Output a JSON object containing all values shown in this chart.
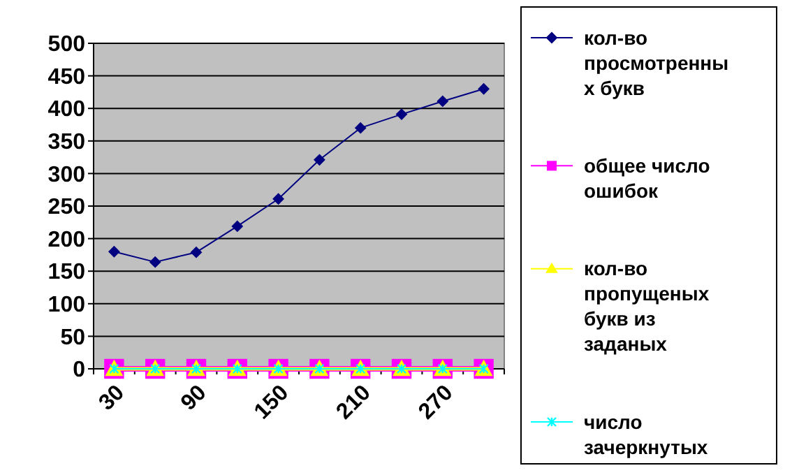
{
  "chart_data": {
    "type": "line",
    "categories": [
      "30",
      null,
      "90",
      null,
      "150",
      null,
      "210",
      null,
      "270",
      null
    ],
    "series": [
      {
        "name": "кол-во просмотренных букв",
        "color": "#000080",
        "marker": "diamond",
        "values": [
          180,
          164,
          179,
          219,
          261,
          321,
          370,
          391,
          411,
          430
        ]
      },
      {
        "name": "общее число ошибок",
        "color": "#ff00ff",
        "marker": "square",
        "values": [
          0,
          0,
          0,
          0,
          0,
          0,
          0,
          0,
          0,
          0
        ]
      },
      {
        "name": "кол-во пропущеных букв из заданых",
        "color": "#ffff00",
        "marker": "triangle",
        "values": [
          0,
          0,
          0,
          0,
          0,
          0,
          0,
          0,
          0,
          0
        ]
      },
      {
        "name": "число зачеркнутых",
        "color": "#00ffff",
        "marker": "cross",
        "values": [
          0,
          0,
          0,
          0,
          0,
          0,
          0,
          0,
          0,
          0
        ]
      }
    ],
    "ylim": [
      0,
      500
    ],
    "yticks": [
      0,
      50,
      100,
      150,
      200,
      250,
      300,
      350,
      400,
      450,
      500
    ],
    "grid": "y",
    "legend": "right"
  }
}
